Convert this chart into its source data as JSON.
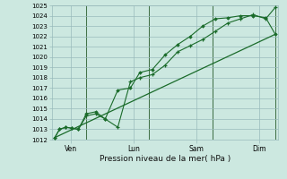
{
  "title": "Pression niveau de la mer( hPa )",
  "bg_color": "#cce8e0",
  "grid_color": "#99bbbb",
  "line_color": "#1a6b2a",
  "ylim": [
    1012,
    1025
  ],
  "yticks": [
    1012,
    1013,
    1014,
    1015,
    1016,
    1017,
    1018,
    1019,
    1020,
    1021,
    1022,
    1023,
    1024,
    1025
  ],
  "xtick_labels": [
    "Ven",
    "Lun",
    "Sam",
    "Dim"
  ],
  "xtick_positions": [
    0.5,
    2.5,
    4.5,
    6.5
  ],
  "series1_x": [
    0.0,
    0.15,
    0.35,
    0.55,
    0.75,
    1.0,
    1.3,
    1.6,
    2.0,
    2.4,
    2.7,
    3.1,
    3.5,
    3.9,
    4.3,
    4.7,
    5.1,
    5.5,
    5.9,
    6.3,
    6.7,
    7.0
  ],
  "series1_y": [
    1012.2,
    1013.0,
    1013.2,
    1013.1,
    1013.0,
    1014.3,
    1014.5,
    1014.0,
    1013.2,
    1017.6,
    1018.0,
    1018.3,
    1019.2,
    1020.5,
    1021.1,
    1021.7,
    1022.5,
    1023.3,
    1023.7,
    1024.1,
    1023.7,
    1024.8
  ],
  "series2_x": [
    0.0,
    0.15,
    0.35,
    0.55,
    0.75,
    1.0,
    1.3,
    1.6,
    2.0,
    2.4,
    2.7,
    3.1,
    3.5,
    3.9,
    4.3,
    4.7,
    5.1,
    5.5,
    5.9,
    6.3,
    6.7,
    7.0
  ],
  "series2_y": [
    1012.2,
    1013.0,
    1013.2,
    1013.1,
    1013.0,
    1014.5,
    1014.7,
    1014.0,
    1016.8,
    1017.0,
    1018.5,
    1018.8,
    1020.2,
    1021.2,
    1022.0,
    1023.0,
    1023.7,
    1023.8,
    1024.0,
    1024.0,
    1023.8,
    1022.2
  ],
  "series3_x": [
    0.0,
    7.0
  ],
  "series3_y": [
    1012.2,
    1022.2
  ],
  "vlines_x": [
    1.0,
    3.0,
    5.0,
    7.0
  ],
  "xlim": [
    -0.1,
    7.1
  ]
}
